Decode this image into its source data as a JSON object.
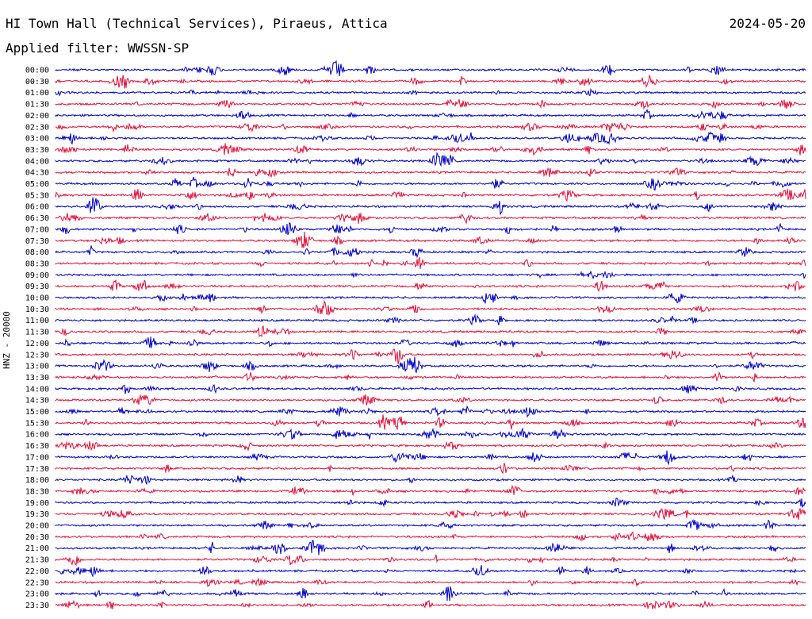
{
  "header": {
    "title": "HI Town Hall (Technical Services), Piraeus, Attica",
    "date": "2024-05-20",
    "filter": "Applied filter: WWSSN-SP"
  },
  "chart_data": {
    "type": "line",
    "title": "HI Town Hall (Technical Services), Piraeus, Attica",
    "ylabel": "HNZ - 20000",
    "date": "2024-05-20",
    "filter": "WWSSN-SP",
    "rows": [
      "00:00",
      "00:30",
      "01:00",
      "01:30",
      "02:00",
      "02:30",
      "03:00",
      "03:30",
      "04:00",
      "04:30",
      "05:00",
      "05:30",
      "06:00",
      "06:30",
      "07:00",
      "07:30",
      "08:00",
      "08:30",
      "09:00",
      "09:30",
      "10:00",
      "10:30",
      "11:00",
      "11:30",
      "12:00",
      "12:30",
      "13:00",
      "13:30",
      "14:00",
      "14:30",
      "15:00",
      "15:30",
      "16:00",
      "16:30",
      "17:00",
      "17:30",
      "18:00",
      "18:30",
      "19:00",
      "19:30",
      "20:00",
      "20:30",
      "21:00",
      "21:30",
      "22:00",
      "22:30",
      "23:00",
      "23:30"
    ],
    "colors": {
      "even": "#0000cc",
      "odd": "#e8103c"
    }
  }
}
